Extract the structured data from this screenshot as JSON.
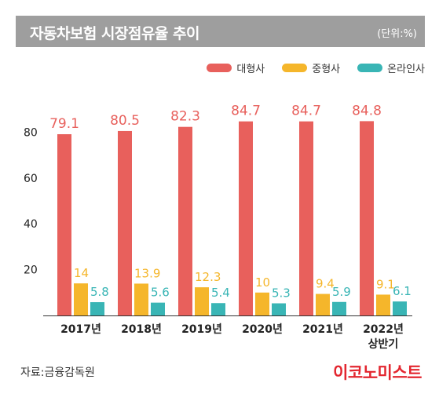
{
  "header": {
    "title": "자동차보험 시장점유율 추이",
    "unit": "(단위:%)"
  },
  "colors": {
    "title_bar": "#9e9e9e",
    "series": [
      "#e8605c",
      "#f5b62b",
      "#39b5b5"
    ],
    "brand": "#e3262f"
  },
  "footer": {
    "source": "자료:금융감독원",
    "brand": "이코노미스트"
  },
  "chart_data": {
    "type": "bar",
    "title": "자동차보험 시장점유율 추이",
    "unit": "(단위:%)",
    "categories": [
      "2017년",
      "2018년",
      "2019년",
      "2020년",
      "2021년",
      "2022년\n상반기"
    ],
    "series": [
      {
        "name": "대형사",
        "values": [
          79.1,
          80.5,
          82.3,
          84.7,
          84.7,
          84.8
        ],
        "labels": [
          "79.1",
          "80.5",
          "82.3",
          "84.7",
          "84.7",
          "84.8"
        ]
      },
      {
        "name": "중형사",
        "values": [
          14,
          13.9,
          12.3,
          10,
          9.4,
          9.1
        ],
        "labels": [
          "14",
          "13.9",
          "12.3",
          "10",
          "9.4",
          "9.1"
        ]
      },
      {
        "name": "온라인사",
        "values": [
          5.8,
          5.6,
          5.4,
          5.3,
          5.9,
          6.1
        ],
        "labels": [
          "5.8",
          "5.6",
          "5.4",
          "5.3",
          "5.9",
          "6.1"
        ]
      }
    ],
    "yticks": [
      20,
      40,
      60,
      80
    ],
    "ylim": [
      0,
      100
    ],
    "grid": false,
    "legend": "top-right"
  }
}
